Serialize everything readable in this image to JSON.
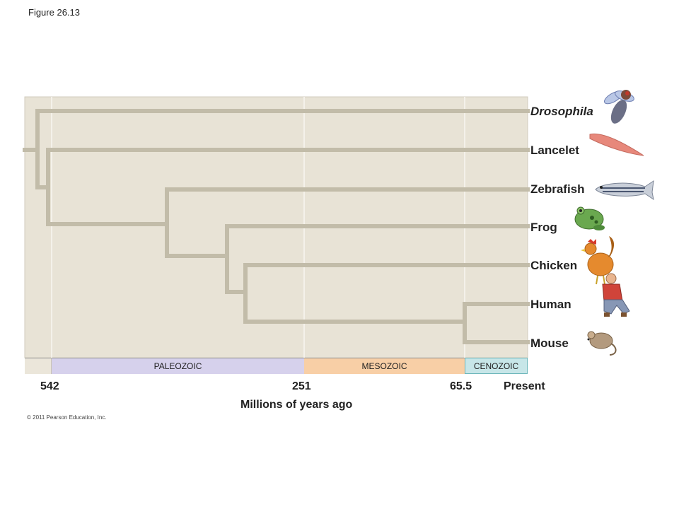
{
  "figure_label": "Figure 26.13",
  "taxa": [
    {
      "name": "Drosophila",
      "icon": "fly-icon"
    },
    {
      "name": "Lancelet",
      "icon": "lancelet-icon"
    },
    {
      "name": "Zebrafish",
      "icon": "zebrafish-icon"
    },
    {
      "name": "Frog",
      "icon": "frog-icon"
    },
    {
      "name": "Chicken",
      "icon": "chicken-icon"
    },
    {
      "name": "Human",
      "icon": "human-icon"
    },
    {
      "name": "Mouse",
      "icon": "mouse-icon"
    }
  ],
  "eras": [
    {
      "name": "PALEOZOIC",
      "color": "#d6d1ec"
    },
    {
      "name": "MESOZOIC",
      "color": "#f8cfa6"
    },
    {
      "name": "CENOZOIC",
      "color": "#c7e6e8"
    }
  ],
  "time_ticks": [
    "542",
    "251",
    "65.5",
    "Present"
  ],
  "axis_title": "Millions of years ago",
  "copyright": "© 2011 Pearson Education, Inc.",
  "colors": {
    "panel": "#e8e3d6",
    "branch": "#c2bca9",
    "grid": "#f4f1ea"
  }
}
